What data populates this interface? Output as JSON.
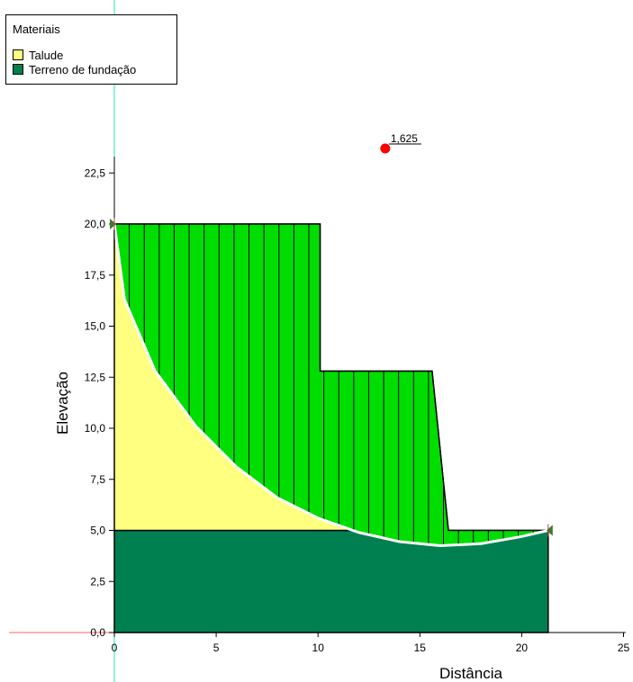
{
  "legend": {
    "title": "Materiais",
    "items": [
      {
        "label": "Talude",
        "color": "#ffff80"
      },
      {
        "label": "Terreno de fundação",
        "color": "#008050"
      }
    ]
  },
  "chart_data": {
    "type": "diagram",
    "xlabel": "Distância",
    "ylabel": "Elevação",
    "xlim": [
      0,
      25
    ],
    "ylim": [
      0,
      25
    ],
    "x_ticks": [
      "0",
      "5",
      "10",
      "15",
      "20",
      "25"
    ],
    "x_tick_values": [
      0,
      5,
      10,
      15,
      20,
      25
    ],
    "y_ticks": [
      "0,0",
      "2,5",
      "5,0",
      "7,5",
      "10,0",
      "12,5",
      "15,0",
      "17,5",
      "20,0",
      "22,5"
    ],
    "y_tick_values": [
      0,
      2.5,
      5,
      7.5,
      10,
      12.5,
      15,
      17.5,
      20,
      22.5
    ],
    "materials": {
      "talude": {
        "color": "#ffff80",
        "polygon": [
          [
            0,
            5
          ],
          [
            0,
            20
          ],
          [
            10.1,
            20
          ],
          [
            10.1,
            12.8
          ],
          [
            15.6,
            12.8
          ],
          [
            16.4,
            5
          ]
        ]
      },
      "foundation": {
        "color": "#008050",
        "polygon": [
          [
            0,
            0
          ],
          [
            21.3,
            0
          ],
          [
            21.3,
            5
          ],
          [
            0,
            5
          ]
        ]
      }
    },
    "slip_surface": {
      "fill": "#00dd00",
      "color": "#ffffff",
      "points": [
        [
          0,
          20
        ],
        [
          0.5,
          16.3
        ],
        [
          2,
          12.8
        ],
        [
          4,
          10.1
        ],
        [
          6,
          8.1
        ],
        [
          8,
          6.6
        ],
        [
          10,
          5.6
        ],
        [
          12,
          4.9
        ],
        [
          14,
          4.45
        ],
        [
          16,
          4.25
        ],
        [
          18,
          4.35
        ],
        [
          20,
          4.7
        ],
        [
          21.3,
          5.0
        ]
      ],
      "slice_count": 29
    },
    "critical_center": {
      "x": 13.3,
      "y": 23.7,
      "label": "1,625",
      "color": "#ff0000"
    },
    "entry_point": {
      "x": 0,
      "y": 20
    },
    "exit_point": {
      "x": 21.3,
      "y": 5
    }
  }
}
